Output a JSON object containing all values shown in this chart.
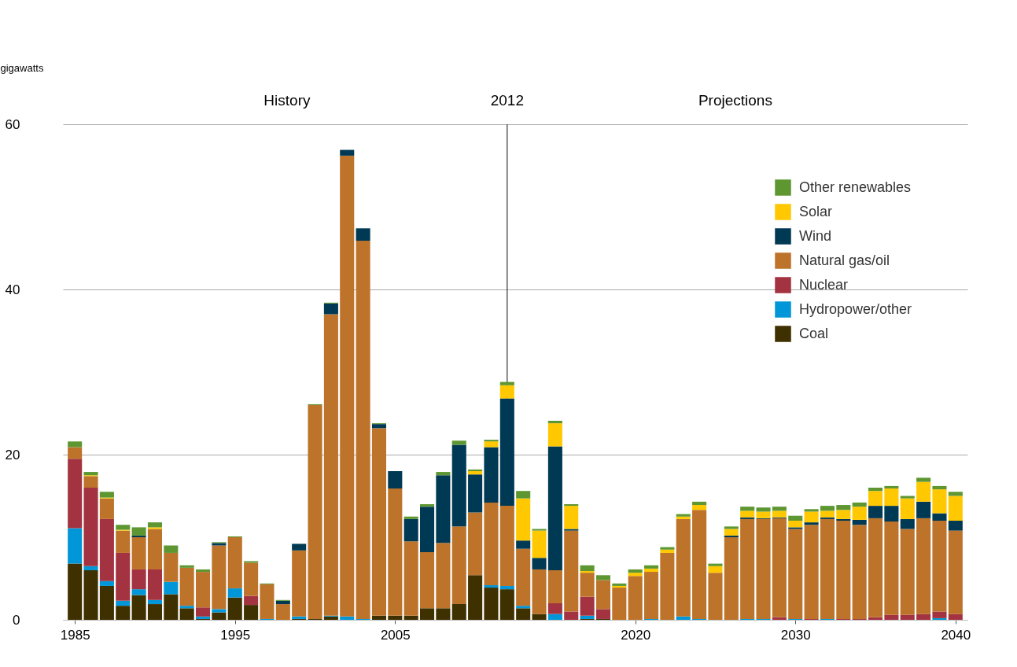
{
  "chart_data": {
    "type": "bar",
    "stacked": true,
    "ylabel": "gigawatts",
    "annotations": [
      "History",
      "Projections"
    ],
    "x": [
      1985,
      1986,
      1987,
      1988,
      1989,
      1990,
      1991,
      1992,
      1993,
      1994,
      1995,
      1996,
      1997,
      1998,
      1999,
      2000,
      2001,
      2002,
      2003,
      2004,
      2005,
      2006,
      2007,
      2008,
      2009,
      2010,
      2011,
      2012,
      2013,
      2014,
      2015,
      2016,
      2017,
      2018,
      2019,
      2020,
      2021,
      2022,
      2023,
      2024,
      2025,
      2026,
      2027,
      2028,
      2029,
      2030,
      2031,
      2032,
      2033,
      2034,
      2035,
      2036,
      2037,
      2038,
      2039,
      2040
    ],
    "xlim": [
      1984.5,
      2040.5
    ],
    "xticks": [
      1985,
      1995,
      2005,
      2020,
      2030,
      2040
    ],
    "ylim": [
      0,
      60
    ],
    "yticks": [
      0,
      20,
      40,
      60
    ],
    "grid": "y",
    "legend": "top right",
    "ref_lines": [
      {
        "axis": "x",
        "value": 2012,
        "label": "2012",
        "color": "#333333"
      }
    ],
    "series": [
      {
        "name": "Coal",
        "color": "#3f3000",
        "values": [
          6.8,
          6.0,
          4.1,
          1.7,
          3.0,
          1.9,
          3.1,
          1.4,
          0.1,
          0.9,
          2.7,
          1.8,
          0,
          0,
          0.1,
          0.1,
          0.4,
          0,
          0,
          0.5,
          0.5,
          0.5,
          1.4,
          1.4,
          1.9,
          5.4,
          3.9,
          3.7,
          1.4,
          0.7,
          0,
          0,
          0.1,
          0.1,
          0,
          0,
          0,
          0,
          0,
          0,
          0,
          0,
          0,
          0,
          0,
          0,
          0,
          0,
          0,
          0,
          0,
          0,
          0,
          0,
          0,
          0
        ]
      },
      {
        "name": "Hydropower/other",
        "color": "#0096d7",
        "values": [
          4.3,
          0.5,
          0.6,
          0.6,
          0.7,
          0.5,
          1.5,
          0.3,
          0.3,
          0.4,
          1.1,
          0,
          0.1,
          0,
          0.3,
          0,
          0.1,
          0.4,
          0.1,
          0,
          0,
          0,
          0,
          0,
          0,
          0,
          0.3,
          0.4,
          0.3,
          0,
          0.7,
          0,
          0.4,
          0,
          0,
          0,
          0.1,
          0,
          0.4,
          0.1,
          0,
          0,
          0.1,
          0.1,
          0,
          0.1,
          0,
          0.1,
          0,
          0,
          0,
          0,
          0,
          0,
          0.2,
          0
        ]
      },
      {
        "name": "Nuclear",
        "color": "#a33340",
        "values": [
          8.4,
          9.5,
          7.5,
          5.8,
          2.4,
          3.7,
          0,
          0,
          1.1,
          0,
          0,
          1.1,
          0,
          0,
          0,
          0,
          0,
          0,
          0,
          0,
          0,
          0,
          0,
          0,
          0,
          0,
          0,
          0,
          0,
          0,
          1.3,
          1.0,
          2.3,
          1.2,
          0,
          0,
          0,
          0,
          0,
          0,
          0,
          0,
          0,
          0,
          0.3,
          0,
          0.1,
          0,
          0.1,
          0.1,
          0.3,
          0.6,
          0.6,
          0.7,
          0.8,
          0.7
        ]
      },
      {
        "name": "Natural gas/oil",
        "color": "#bd732a",
        "values": [
          1.4,
          1.4,
          2.5,
          2.7,
          3.9,
          4.9,
          3.5,
          4.6,
          4.3,
          7.7,
          6.2,
          4.0,
          4.2,
          1.9,
          8.0,
          25.9,
          36.5,
          55.8,
          45.8,
          22.7,
          15.4,
          9.0,
          6.8,
          7.9,
          9.4,
          7.6,
          10.0,
          9.7,
          6.9,
          5.4,
          4.0,
          9.8,
          2.9,
          3.5,
          3.9,
          5.3,
          5.7,
          8.1,
          11.8,
          13.2,
          5.7,
          10.0,
          12.1,
          12.1,
          12.0,
          10.9,
          11.4,
          12.1,
          11.9,
          11.4,
          12.0,
          11.3,
          10.4,
          11.6,
          11.0,
          10.1
        ]
      },
      {
        "name": "Wind",
        "color": "#003953",
        "values": [
          0,
          0,
          0,
          0,
          0.2,
          0,
          0,
          0,
          0,
          0.3,
          0,
          0,
          0,
          0.4,
          0.8,
          0,
          1.3,
          0.7,
          1.5,
          0.5,
          2.1,
          2.7,
          5.5,
          8.2,
          9.9,
          4.6,
          6.7,
          13.0,
          1.0,
          1.4,
          15.0,
          0.2,
          0,
          0,
          0,
          0,
          0,
          0,
          0,
          0,
          0,
          0.2,
          0.2,
          0.1,
          0.1,
          0.2,
          0.3,
          0.2,
          0.2,
          0.6,
          1.5,
          1.9,
          1.2,
          2.0,
          0.9,
          1.2
        ]
      },
      {
        "name": "Solar",
        "color": "#ffc800",
        "values": [
          0,
          0.1,
          0.1,
          0.1,
          0,
          0.2,
          0,
          0,
          0,
          0,
          0,
          0,
          0,
          0,
          0,
          0,
          0,
          0,
          0,
          0,
          0,
          0,
          0,
          0,
          0,
          0.4,
          0.7,
          1.6,
          5.1,
          3.3,
          2.8,
          2.8,
          0.2,
          0,
          0.2,
          0.4,
          0.4,
          0.4,
          0.3,
          0.6,
          0.8,
          0.8,
          0.8,
          0.8,
          0.8,
          0.8,
          1.3,
          0.8,
          1.1,
          1.6,
          1.8,
          2.1,
          2.5,
          2.4,
          2.9,
          3.0
        ]
      },
      {
        "name": "Other renewables",
        "color": "#5e9732",
        "values": [
          0.7,
          0.4,
          0.7,
          0.6,
          1.0,
          0.6,
          0.9,
          0.3,
          0.3,
          0.1,
          0.1,
          0.2,
          0.1,
          0.1,
          0,
          0.1,
          0.1,
          0,
          0,
          0.1,
          0,
          0.3,
          0.3,
          0.4,
          0.5,
          0.2,
          0.2,
          0.4,
          0.9,
          0.2,
          0.3,
          0.2,
          0.7,
          0.6,
          0.3,
          0.4,
          0.4,
          0.3,
          0.3,
          0.4,
          0.3,
          0.3,
          0.5,
          0.5,
          0.5,
          0.6,
          0.3,
          0.6,
          0.6,
          0.5,
          0.4,
          0.3,
          0.3,
          0.5,
          0.4,
          0.5
        ]
      }
    ]
  }
}
